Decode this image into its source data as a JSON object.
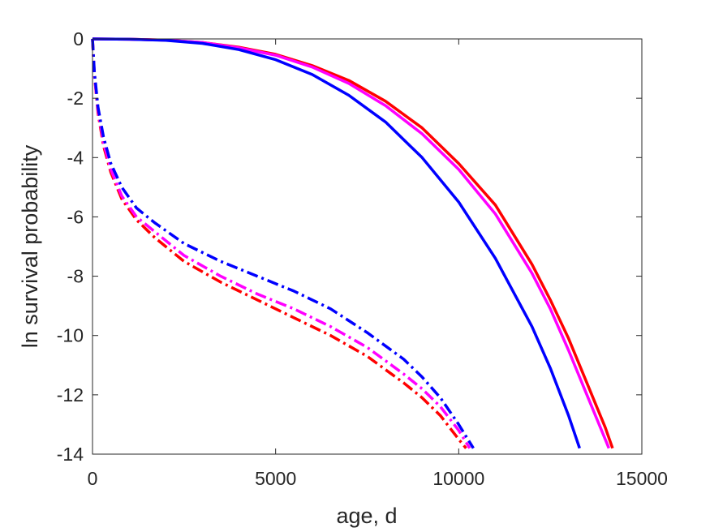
{
  "chart_data": {
    "type": "line",
    "xlabel": "age, d",
    "ylabel": "ln survival probability",
    "xlim": [
      0,
      15000
    ],
    "ylim": [
      -14,
      0
    ],
    "xticks": [
      "0",
      "5000",
      "10000",
      "15000"
    ],
    "yticks": [
      "0",
      "-2",
      "-4",
      "-6",
      "-8",
      "-10",
      "-12",
      "-14"
    ],
    "grid": false,
    "legend": "none",
    "series": [
      {
        "color": "#ff0000",
        "style": "solid",
        "x": [
          0,
          1000,
          2000,
          3000,
          4000,
          5000,
          6000,
          7000,
          8000,
          9000,
          10000,
          11000,
          12000,
          12500,
          13000,
          13500,
          14000,
          14200
        ],
        "y": [
          0,
          -0.01,
          -0.04,
          -0.12,
          -0.28,
          -0.52,
          -0.9,
          -1.4,
          -2.1,
          -3.0,
          -4.2,
          -5.6,
          -7.6,
          -8.8,
          -10.1,
          -11.6,
          -13.1,
          -13.8
        ]
      },
      {
        "color": "#ff00ff",
        "style": "solid",
        "x": [
          0,
          1000,
          2000,
          3000,
          4000,
          5000,
          6000,
          7000,
          8000,
          9000,
          10000,
          11000,
          12000,
          12500,
          13000,
          13500,
          14000,
          14100
        ],
        "y": [
          0,
          -0.01,
          -0.04,
          -0.12,
          -0.3,
          -0.55,
          -0.95,
          -1.5,
          -2.25,
          -3.2,
          -4.4,
          -5.9,
          -7.9,
          -9.1,
          -10.5,
          -12.0,
          -13.5,
          -13.8
        ]
      },
      {
        "color": "#0000ff",
        "style": "solid",
        "x": [
          0,
          1000,
          2000,
          3000,
          4000,
          5000,
          6000,
          7000,
          8000,
          9000,
          10000,
          11000,
          12000,
          12500,
          13000,
          13300
        ],
        "y": [
          0,
          -0.01,
          -0.05,
          -0.15,
          -0.36,
          -0.7,
          -1.2,
          -1.9,
          -2.8,
          -4.0,
          -5.5,
          -7.4,
          -9.7,
          -11.1,
          -12.7,
          -13.8
        ]
      },
      {
        "color": "#ff0000",
        "style": "dashdot",
        "x": [
          0,
          50,
          150,
          300,
          500,
          800,
          1200,
          1700,
          2500,
          3500,
          4500,
          5500,
          6500,
          7500,
          8500,
          9000,
          9500,
          10000,
          10200
        ],
        "y": [
          0,
          -1.2,
          -2.5,
          -3.6,
          -4.5,
          -5.4,
          -6.1,
          -6.7,
          -7.5,
          -8.2,
          -8.8,
          -9.4,
          -10.0,
          -10.7,
          -11.6,
          -12.1,
          -12.7,
          -13.5,
          -13.8
        ]
      },
      {
        "color": "#ff00ff",
        "style": "dashdot",
        "x": [
          0,
          50,
          150,
          300,
          500,
          800,
          1200,
          1700,
          2500,
          3500,
          4500,
          5500,
          6500,
          7500,
          8500,
          9000,
          9500,
          10000,
          10300
        ],
        "y": [
          0,
          -1.2,
          -2.4,
          -3.5,
          -4.4,
          -5.3,
          -6.0,
          -6.5,
          -7.3,
          -8.0,
          -8.6,
          -9.1,
          -9.7,
          -10.4,
          -11.3,
          -11.8,
          -12.4,
          -13.2,
          -13.8
        ]
      },
      {
        "color": "#0000ff",
        "style": "dashdot",
        "x": [
          0,
          50,
          150,
          300,
          500,
          800,
          1200,
          1700,
          2500,
          3500,
          4500,
          5500,
          6500,
          7500,
          8500,
          9000,
          9500,
          10000,
          10400
        ],
        "y": [
          0,
          -1.1,
          -2.3,
          -3.3,
          -4.2,
          -5.0,
          -5.7,
          -6.2,
          -6.9,
          -7.5,
          -8.0,
          -8.5,
          -9.1,
          -9.9,
          -10.8,
          -11.4,
          -12.1,
          -13.0,
          -13.8
        ]
      }
    ]
  }
}
